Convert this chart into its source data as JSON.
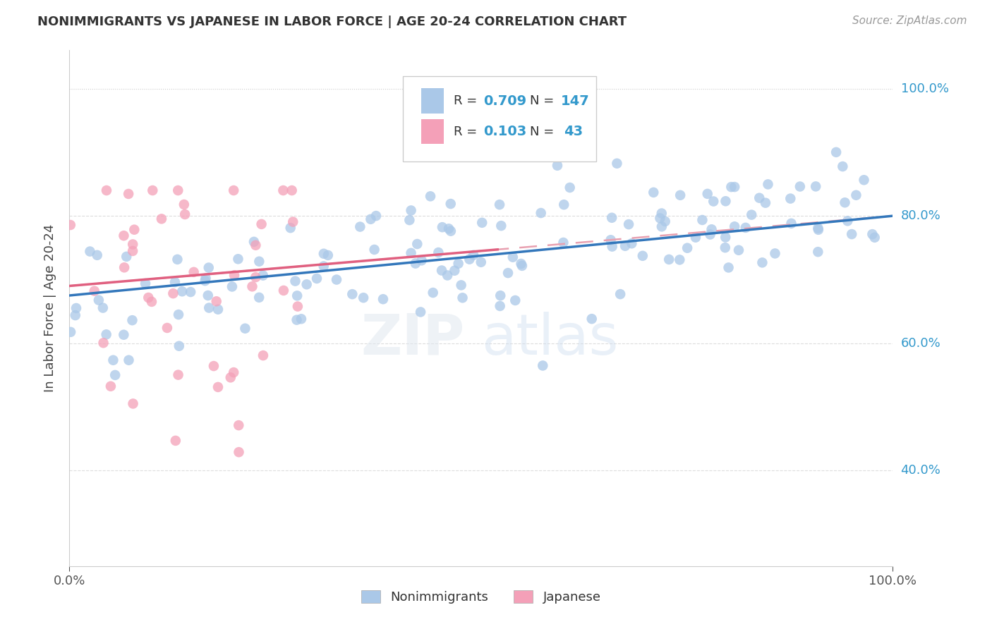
{
  "title": "NONIMMIGRANTS VS JAPANESE IN LABOR FORCE | AGE 20-24 CORRELATION CHART",
  "source": "Source: ZipAtlas.com",
  "ylabel": "In Labor Force | Age 20-24",
  "xlim": [
    0.0,
    1.0
  ],
  "ylim": [
    0.25,
    1.06
  ],
  "xticklabels": [
    "0.0%",
    "100.0%"
  ],
  "yticklabels": [
    "40.0%",
    "60.0%",
    "80.0%",
    "100.0%"
  ],
  "ytick_positions": [
    0.4,
    0.6,
    0.8,
    1.0
  ],
  "blue_color": "#aac8e8",
  "pink_color": "#f4a0b8",
  "blue_line_color": "#3377bb",
  "pink_line_color": "#e06080",
  "pink_dashed_color": "#e8a0b0",
  "R_blue": 0.709,
  "N_blue": 147,
  "R_pink": 0.103,
  "N_pink": 43,
  "legend_text_color": "#3399cc",
  "right_label_color": "#3399cc",
  "blue_trend_x0": 0.0,
  "blue_trend_y0": 0.675,
  "blue_trend_x1": 1.0,
  "blue_trend_y1": 0.8,
  "pink_trend_x0": 0.0,
  "pink_trend_y0": 0.69,
  "pink_trend_x1": 1.0,
  "pink_trend_y1": 0.8,
  "bg_color": "#ffffff",
  "grid_color": "#dddddd"
}
